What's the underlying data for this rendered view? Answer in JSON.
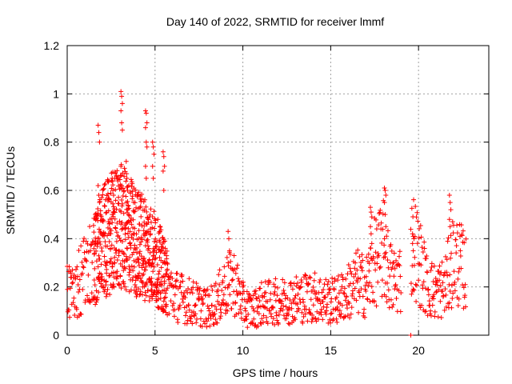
{
  "chart_data": {
    "type": "scatter",
    "title": "Day 140 of 2022, SRMTID for receiver lmmf",
    "xlabel": "GPS time / hours",
    "ylabel": "SRMTID / TECUs",
    "xlim": [
      0,
      24
    ],
    "ylim": [
      0,
      1.2
    ],
    "xticks": [
      0,
      5,
      10,
      15,
      20
    ],
    "xtick_labels": [
      "0",
      "5",
      "10",
      "15",
      "20"
    ],
    "yticks": [
      0,
      0.2,
      0.4,
      0.6,
      0.8,
      1.0,
      1.2
    ],
    "ytick_labels": [
      "0",
      "0.2",
      "0.4",
      "0.6",
      "0.8",
      "1",
      "1.2"
    ],
    "grid": true,
    "marker": "+",
    "series": [
      {
        "name": "SRMTID",
        "color": "#ff0000",
        "trend": [
          [
            0.0,
            0.18
          ],
          [
            0.5,
            0.2
          ],
          [
            1.0,
            0.25
          ],
          [
            1.5,
            0.3
          ],
          [
            2.0,
            0.38
          ],
          [
            2.5,
            0.42
          ],
          [
            3.0,
            0.45
          ],
          [
            3.5,
            0.42
          ],
          [
            4.0,
            0.38
          ],
          [
            4.5,
            0.36
          ],
          [
            5.0,
            0.32
          ],
          [
            5.5,
            0.25
          ],
          [
            6.0,
            0.17
          ],
          [
            7.0,
            0.14
          ],
          [
            8.0,
            0.11
          ],
          [
            8.5,
            0.14
          ],
          [
            9.0,
            0.2
          ],
          [
            9.5,
            0.22
          ],
          [
            10.0,
            0.13
          ],
          [
            10.5,
            0.1
          ],
          [
            11.0,
            0.13
          ],
          [
            12.0,
            0.14
          ],
          [
            13.0,
            0.15
          ],
          [
            14.0,
            0.16
          ],
          [
            15.0,
            0.14
          ],
          [
            15.5,
            0.15
          ],
          [
            16.0,
            0.18
          ],
          [
            16.5,
            0.22
          ],
          [
            17.0,
            0.2
          ],
          [
            17.5,
            0.3
          ],
          [
            18.0,
            0.35
          ],
          [
            18.5,
            0.22
          ],
          [
            19.0,
            0.24
          ],
          [
            19.7,
            0.38
          ],
          [
            20.0,
            0.32
          ],
          [
            20.5,
            0.2
          ],
          [
            21.0,
            0.18
          ],
          [
            21.5,
            0.2
          ],
          [
            22.0,
            0.32
          ],
          [
            22.5,
            0.28
          ],
          [
            22.7,
            0.25
          ]
        ],
        "bursts": [
          {
            "t": 1.8,
            "values": [
              0.87,
              0.84,
              0.8,
              0.62,
              0.58,
              0.55,
              0.5
            ]
          },
          {
            "t": 2.6,
            "values": [
              0.65,
              0.6,
              0.58,
              0.5
            ]
          },
          {
            "t": 3.1,
            "values": [
              1.01,
              0.99,
              0.96,
              0.93,
              0.88,
              0.85,
              0.7,
              0.62
            ]
          },
          {
            "t": 3.4,
            "values": [
              0.72,
              0.65,
              0.6,
              0.55
            ]
          },
          {
            "t": 4.5,
            "values": [
              0.93,
              0.92,
              0.88,
              0.86,
              0.8,
              0.78,
              0.7,
              0.65
            ]
          },
          {
            "t": 4.9,
            "values": [
              0.8,
              0.78,
              0.75,
              0.7,
              0.65
            ]
          },
          {
            "t": 5.5,
            "values": [
              0.76,
              0.74,
              0.7,
              0.68,
              0.6
            ]
          },
          {
            "t": 9.2,
            "values": [
              0.43,
              0.4,
              0.35,
              0.3
            ]
          },
          {
            "t": 17.3,
            "values": [
              0.53,
              0.51,
              0.49,
              0.45,
              0.42,
              0.38
            ]
          },
          {
            "t": 18.1,
            "values": [
              0.61,
              0.6,
              0.58,
              0.55,
              0.5,
              0.45,
              0.4
            ]
          },
          {
            "t": 19.7,
            "values": [
              0.42,
              0.41,
              0.4,
              0.38,
              0.35
            ]
          },
          {
            "t": 21.8,
            "values": [
              0.58,
              0.55,
              0.52,
              0.48,
              0.45
            ]
          },
          {
            "t": 19.6,
            "values": [
              0.0
            ]
          }
        ]
      }
    ]
  }
}
